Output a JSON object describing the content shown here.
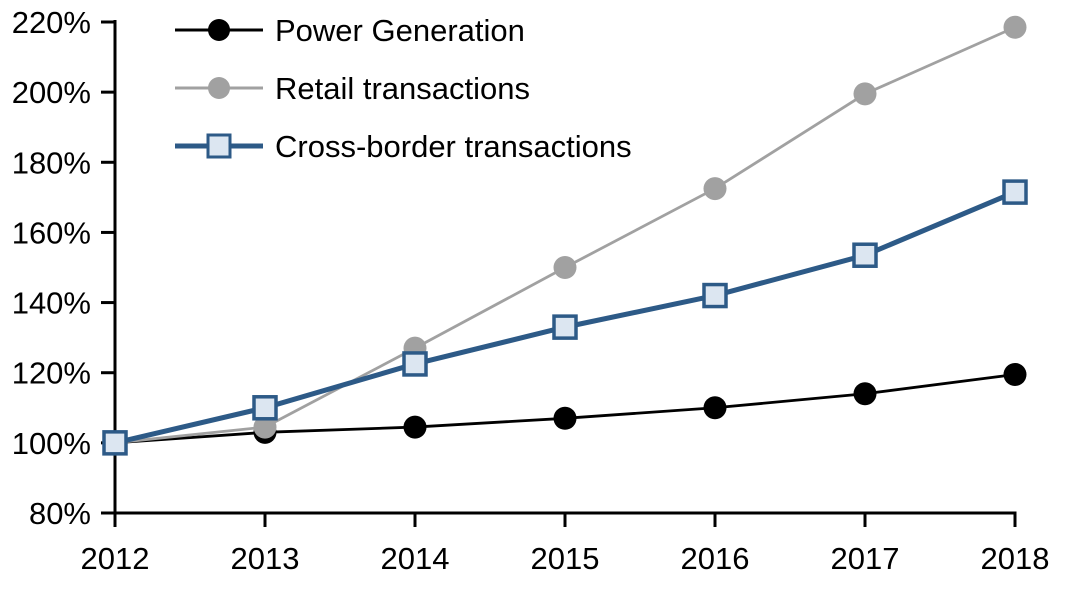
{
  "chart_data": {
    "type": "line",
    "title": "",
    "xlabel": "",
    "ylabel": "",
    "x": [
      2012,
      2013,
      2014,
      2015,
      2016,
      2017,
      2018
    ],
    "x_tick_labels": [
      "2012",
      "2013",
      "2014",
      "2015",
      "2016",
      "2017",
      "2018"
    ],
    "y_ticks": [
      80,
      100,
      120,
      140,
      160,
      180,
      200,
      220
    ],
    "y_tick_labels": [
      "80%",
      "100%",
      "120%",
      "140%",
      "160%",
      "180%",
      "200%",
      "220%"
    ],
    "ylim": [
      80,
      220
    ],
    "grid": false,
    "legend_position": "top-left-inside",
    "axis_color": "#000000",
    "background_color": "#ffffff",
    "series": [
      {
        "name": "Power Generation",
        "color": "#000000",
        "marker": "circle",
        "marker_fill": "#000000",
        "line_width": 2.8,
        "values": [
          100,
          103,
          104.5,
          107,
          110,
          114,
          119.5
        ]
      },
      {
        "name": "Retail transactions",
        "color": "#A1A1A1",
        "marker": "circle",
        "marker_fill": "#A1A1A1",
        "line_width": 2.8,
        "values": [
          100,
          104.5,
          127,
          150,
          172.5,
          199.5,
          218.5
        ]
      },
      {
        "name": "Cross-border transactions",
        "color": "#2D5A87",
        "marker": "square",
        "marker_fill": "#DCE6F1",
        "line_width": 5,
        "values": [
          100,
          110,
          122.5,
          133,
          142,
          153.5,
          171.5
        ]
      }
    ]
  }
}
